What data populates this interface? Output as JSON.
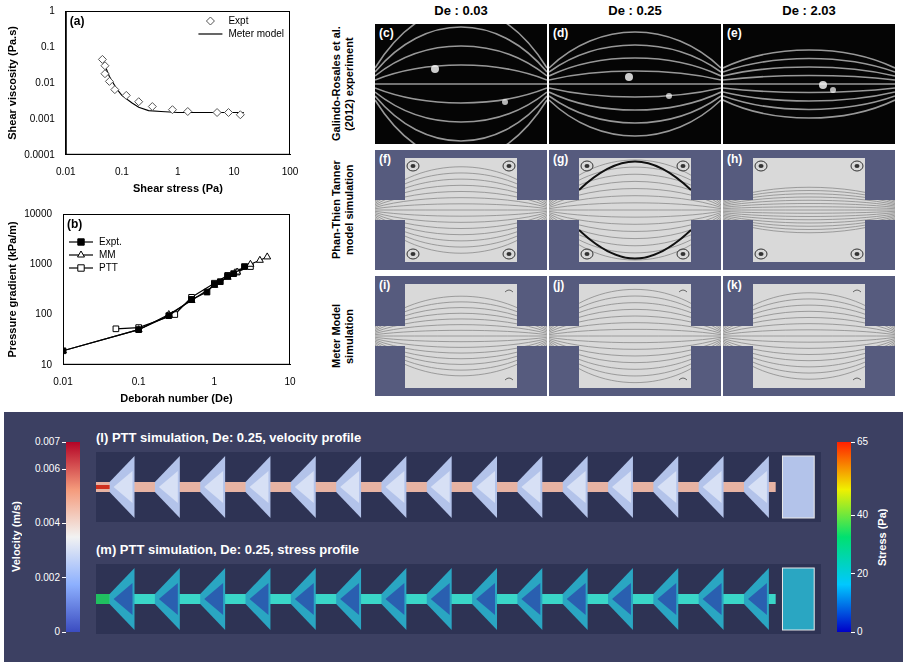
{
  "chart_data": [
    {
      "label": "(a)",
      "type": "scatter",
      "x_label": "Shear stress (Pa)",
      "y_label": "Shear viscosity (Pa.s)",
      "log": true,
      "grid": false,
      "legend": "top-right",
      "xlim": [
        0.01,
        100
      ],
      "xticks": [
        0.01,
        0.1,
        1,
        10,
        100
      ],
      "ylim": [
        0.0001,
        1
      ],
      "yticks": [
        0.0001,
        0.001,
        0.01,
        0.1,
        1
      ],
      "series": [
        {
          "name": "Expt",
          "type": "scatter",
          "marker": "diamond_open",
          "color": "#555555",
          "x": [
            0.045,
            0.05,
            0.05,
            0.06,
            0.075,
            0.12,
            0.2,
            0.35,
            0.8,
            1.5,
            5,
            8,
            13
          ],
          "values": [
            0.045,
            0.03,
            0.018,
            0.011,
            0.0065,
            0.0045,
            0.003,
            0.0022,
            0.0018,
            0.0016,
            0.0015,
            0.0015,
            0.0013
          ]
        },
        {
          "name": "Meter model",
          "type": "line",
          "marker": "none",
          "line_style": "solid",
          "color": "#000000",
          "x": [
            0.045,
            0.05,
            0.06,
            0.08,
            0.1,
            0.15,
            0.2,
            0.3,
            0.5,
            1,
            3,
            15
          ],
          "values": [
            0.05,
            0.03,
            0.015,
            0.007,
            0.0045,
            0.0028,
            0.0021,
            0.0017,
            0.0016,
            0.0015,
            0.0015,
            0.0015
          ]
        }
      ]
    },
    {
      "label": "(b)",
      "type": "scatter",
      "x_label": "Deborah number (De)",
      "y_label": "Pressure gradient (kPa/m)",
      "log": true,
      "grid": false,
      "legend": "top-left",
      "xlim": [
        0.01,
        10
      ],
      "xticks": [
        0.01,
        0.1,
        1,
        10
      ],
      "ylim": [
        10,
        10000
      ],
      "yticks": [
        10,
        100,
        1000,
        10000
      ],
      "series": [
        {
          "name": "Expt.",
          "type": "line",
          "marker": "square_filled",
          "line_style": "solid",
          "color": "#000000",
          "x": [
            0.01,
            0.1,
            0.25,
            0.5,
            0.8,
            1,
            1.2,
            1.5,
            1.8,
            2.5
          ],
          "values": [
            19,
            50,
            95,
            200,
            280,
            400,
            450,
            580,
            650,
            900
          ]
        },
        {
          "name": "MM",
          "type": "line",
          "marker": "triangle_open",
          "line_style": "solid",
          "color": "#000000",
          "x": [
            0.01,
            0.1,
            0.25,
            0.5,
            1,
            1.5,
            2,
            3,
            4,
            5
          ],
          "values": [
            19,
            50,
            100,
            190,
            380,
            550,
            700,
            1000,
            1200,
            1400
          ]
        },
        {
          "name": "PTT",
          "type": "line",
          "marker": "square_open",
          "line_style": "solid",
          "color": "#000000",
          "x": [
            0.05,
            0.1,
            0.3,
            0.5,
            1,
            1.5,
            2,
            3
          ],
          "values": [
            52,
            55,
            100,
            220,
            420,
            600,
            700,
            900
          ]
        }
      ]
    }
  ],
  "columns": [
    "De : 0.03",
    "De : 0.25",
    "De : 2.03"
  ],
  "rows": [
    {
      "label": "Galindo-Rosales et al. (2012) experiment",
      "panels": [
        "(c)",
        "(d)",
        "(e)"
      ]
    },
    {
      "label": "Phan-Thien Tanner model simulation",
      "panels": [
        "(f)",
        "(g)",
        "(h)"
      ]
    },
    {
      "label": "Meter Model simulation",
      "panels": [
        "(i)",
        "(j)",
        "(k)"
      ]
    }
  ],
  "bottom": {
    "panels": [
      {
        "label": "(l)",
        "title": "PTT simulation,  De: 0.25, velocity profile"
      },
      {
        "label": "(m)",
        "title": "PTT simulation,  De: 0.25, stress profile"
      }
    ],
    "colorbars": [
      {
        "title": "Velocity (m/s)",
        "range": [
          0,
          0.007
        ],
        "ticks": [
          0,
          0.002,
          0.004,
          0.006,
          0.007
        ]
      },
      {
        "title": "Stress (Pa)",
        "range": [
          0,
          65
        ],
        "ticks": [
          0,
          20,
          40,
          65
        ]
      }
    ]
  }
}
